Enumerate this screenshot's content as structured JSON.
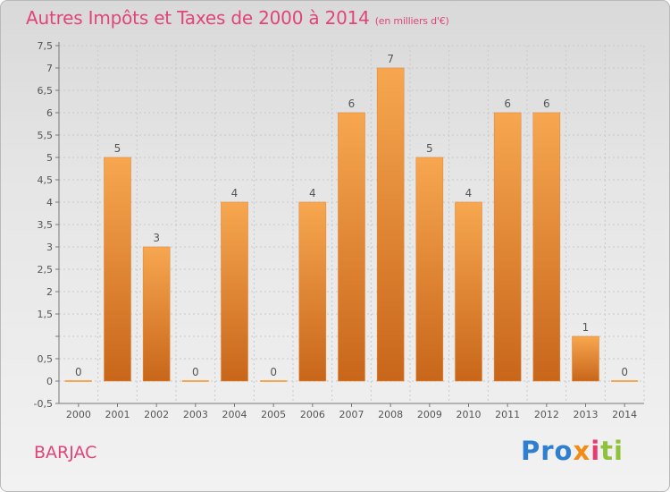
{
  "title": {
    "main": "Autres Impôts et Taxes de 2000 à 2014",
    "unit": "(en milliers d'€)"
  },
  "location": "BARJAC",
  "logo": {
    "text": "Proxiti",
    "parts": [
      "Pro",
      "x",
      "i",
      "ti"
    ]
  },
  "chart_data": {
    "type": "bar",
    "categories": [
      "2000",
      "2001",
      "2002",
      "2003",
      "2004",
      "2005",
      "2006",
      "2007",
      "2008",
      "2009",
      "2010",
      "2011",
      "2012",
      "2013",
      "2014"
    ],
    "values": [
      0,
      5,
      3,
      0,
      4,
      0,
      4,
      6,
      7,
      5,
      4,
      6,
      6,
      1,
      0
    ],
    "data_labels": [
      "0",
      "5",
      "3",
      "0",
      "4",
      "0",
      "4",
      "6",
      "7",
      "5",
      "4",
      "6",
      "6",
      "1",
      "0"
    ],
    "title": "Autres Impôts et Taxes de 2000 à 2014",
    "xlabel": "",
    "ylabel": "",
    "ylim": [
      -0.5,
      7.5
    ],
    "yticks": [
      -0.5,
      0,
      0.5,
      1,
      1.5,
      2,
      2.5,
      3,
      3.5,
      4,
      4.5,
      5,
      5.5,
      6,
      6.5,
      7,
      7.5
    ],
    "ytick_labels": [
      "-0,5",
      "0",
      "0,5",
      "",
      "1,5",
      "2",
      "2,5",
      "3",
      "3,5",
      "4",
      "4,5",
      "5",
      "5,5",
      "6",
      "6,5",
      "7",
      "7,5"
    ],
    "grid": true,
    "colors": {
      "bar_top": "#f7a750",
      "bar_bottom": "#c8661a",
      "grid": "#c8c8c8",
      "title": "#e0457a"
    }
  }
}
